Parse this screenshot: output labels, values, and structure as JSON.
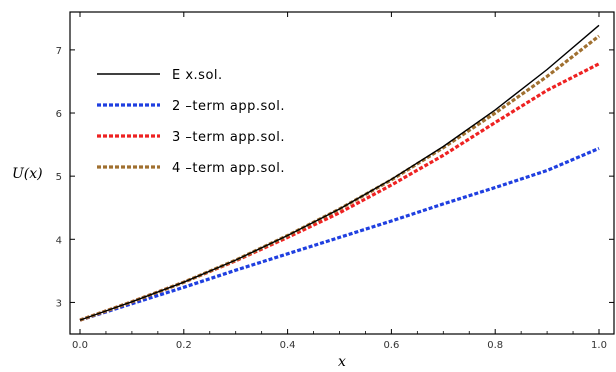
{
  "chart_data": {
    "type": "line",
    "title": "",
    "xlabel": "x",
    "ylabel": "U(x)",
    "xlim": [
      0,
      1.0
    ],
    "ylim": [
      2.5,
      7.6
    ],
    "xticks": [
      "0.0",
      "0.2",
      "0.4",
      "0.6",
      "0.8",
      "1.0"
    ],
    "yticks": [
      "3",
      "4",
      "5",
      "6",
      "7"
    ],
    "grid": false,
    "legend_position": "top-left",
    "x": [
      0,
      0.1,
      0.2,
      0.3,
      0.4,
      0.5,
      0.6,
      0.7,
      0.8,
      0.9,
      1.0
    ],
    "series": [
      {
        "name": "E x.sol.",
        "color": "#000000",
        "style": "solid",
        "values": [
          2.72,
          3.01,
          3.32,
          3.67,
          4.06,
          4.48,
          4.95,
          5.47,
          6.05,
          6.69,
          7.39
        ]
      },
      {
        "name": "2 –term app.sol.",
        "color": "#1f3fe0",
        "style": "dashed",
        "values": [
          2.72,
          2.98,
          3.24,
          3.51,
          3.77,
          4.03,
          4.29,
          4.56,
          4.82,
          5.09,
          5.44
        ]
      },
      {
        "name": "3 –term app.sol.",
        "color": "#ee2222",
        "style": "dashed",
        "values": [
          2.72,
          3.01,
          3.32,
          3.66,
          4.03,
          4.42,
          4.86,
          5.33,
          5.85,
          6.36,
          6.78
        ]
      },
      {
        "name": "4 –term app.sol.",
        "color": "#a07030",
        "style": "dashed",
        "values": [
          2.72,
          3.01,
          3.32,
          3.67,
          4.06,
          4.48,
          4.94,
          5.45,
          6.0,
          6.58,
          7.22
        ]
      }
    ]
  }
}
